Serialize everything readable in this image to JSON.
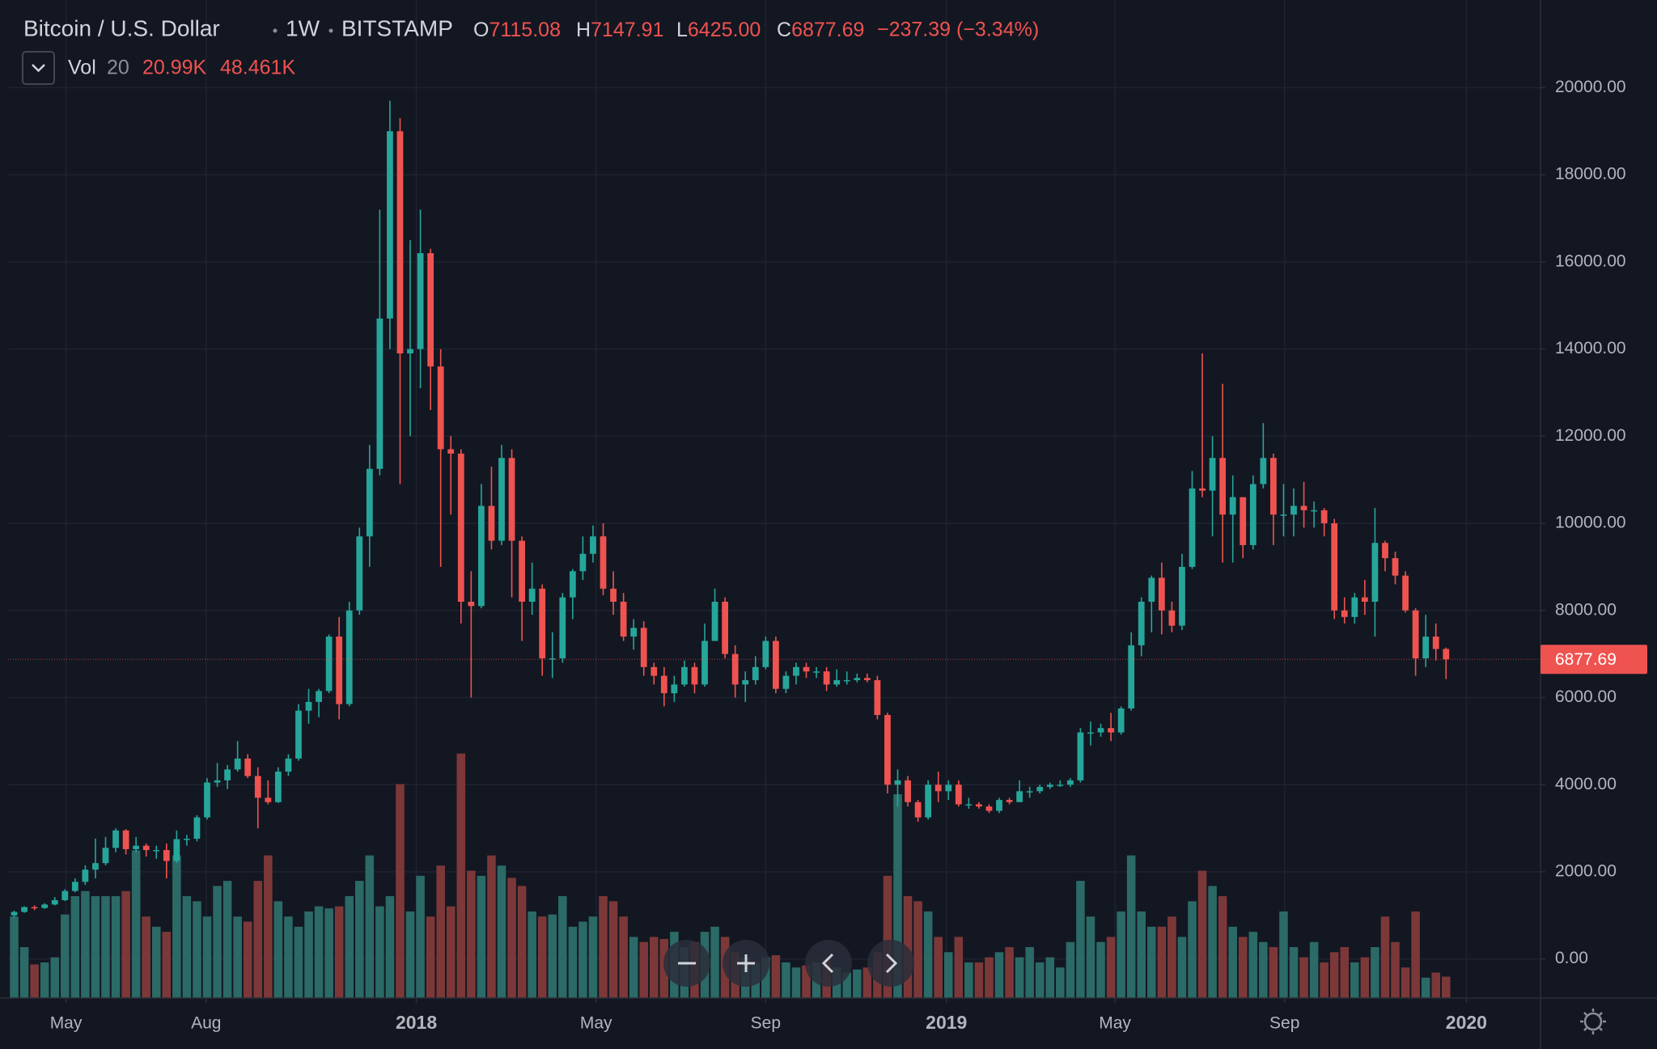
{
  "header": {
    "title": "Bitcoin / U.S. Dollar",
    "interval": "1W",
    "exchange": "BITSTAMP",
    "ohlc": [
      {
        "key": "O",
        "value": "7115.08"
      },
      {
        "key": "H",
        "value": "7147.91"
      },
      {
        "key": "L",
        "value": "6425.00"
      },
      {
        "key": "C",
        "value": "6877.69"
      }
    ],
    "change": "−237.39 (−3.34%)",
    "volume_label": "Vol",
    "volume_length": "20",
    "volume_value": "20.99K",
    "volume_ma": "48.461K"
  },
  "chart_data": {
    "type": "candlestick",
    "up_color": "#26a69a",
    "down_color": "#ef5350",
    "volume_up_color": "#2b6a66",
    "volume_down_color": "#7c3838",
    "xlim": [
      -0.6,
      150.3
    ],
    "xticks": [
      {
        "value": 5.1,
        "label": "May"
      },
      {
        "value": 18.9,
        "label": "Aug"
      },
      {
        "value": 39.6,
        "label": "2018"
      },
      {
        "value": 57.3,
        "label": "May"
      },
      {
        "value": 74.0,
        "label": "Sep"
      },
      {
        "value": 91.8,
        "label": "2019"
      },
      {
        "value": 108.4,
        "label": "May"
      },
      {
        "value": 125.1,
        "label": "Sep"
      },
      {
        "value": 143.0,
        "label": "2020"
      }
    ],
    "ylim": [
      -897,
      22012
    ],
    "yticks": [
      {
        "value": 0,
        "label": "0.00"
      },
      {
        "value": 2000,
        "label": "2000.00"
      },
      {
        "value": 4000,
        "label": "4000.00"
      },
      {
        "value": 6000,
        "label": "6000.00"
      },
      {
        "value": 8000,
        "label": "8000.00"
      },
      {
        "value": 10000,
        "label": "10000.00"
      },
      {
        "value": 12000,
        "label": "12000.00"
      },
      {
        "value": 14000,
        "label": "14000.00"
      },
      {
        "value": 16000,
        "label": "16000.00"
      },
      {
        "value": 18000,
        "label": "18000.00"
      },
      {
        "value": 20000,
        "label": "20000.00"
      }
    ],
    "grid": true,
    "open": [
      1000,
      1080,
      1190,
      1170,
      1250,
      1350,
      1560,
      1770,
      2050,
      2200,
      2550,
      2950,
      2520,
      2600,
      2500,
      2500,
      2250,
      2750,
      2760,
      3250,
      4050,
      4100,
      4350,
      4600,
      4200,
      3700,
      3600,
      4300,
      4600,
      5700,
      5900,
      6150,
      7400,
      5850,
      8000,
      9700,
      11250,
      14700,
      19000,
      13900,
      14000,
      16200,
      13600,
      11700,
      11600,
      8200,
      8100,
      10400,
      9600,
      11500,
      9600,
      8200,
      8500,
      6900,
      6900,
      8300,
      8900,
      9300,
      9700,
      8500,
      8200,
      7400,
      7600,
      6700,
      6500,
      6100,
      6300,
      6700,
      6300,
      7300,
      8200,
      7000,
      6300,
      6400,
      6700,
      7300,
      6200,
      6500,
      6700,
      6600,
      6600,
      6300,
      6400,
      6400,
      6450,
      6400,
      5600,
      4000,
      4100,
      3600,
      3250,
      4000,
      3850,
      4000,
      3550,
      3550,
      3500,
      3400,
      3650,
      3600,
      3850,
      3850,
      3950,
      4000,
      4000,
      4100,
      5200,
      5200,
      5300,
      5200,
      5750,
      7200,
      8200,
      8750,
      8000,
      7650,
      9000,
      10800,
      10750,
      11500,
      10200,
      10600,
      9500,
      10900,
      11500,
      10200,
      10200,
      10400,
      10300,
      10300,
      10000,
      8000,
      7850,
      8300,
      8200,
      9550,
      9200,
      8800,
      8000,
      6900,
      7400,
      7115.08
    ],
    "high": [
      1110,
      1210,
      1230,
      1280,
      1420,
      1600,
      1850,
      2150,
      2760,
      2800,
      3000,
      2980,
      2800,
      2650,
      2600,
      2650,
      2950,
      2850,
      3300,
      4150,
      4500,
      4450,
      5000,
      4700,
      4400,
      4100,
      4400,
      4700,
      5850,
      6200,
      6200,
      7450,
      7850,
      8200,
      9900,
      11800,
      17200,
      19700,
      19300,
      16500,
      17200,
      16300,
      14000,
      12000,
      11700,
      8900,
      10900,
      11300,
      11800,
      11700,
      9700,
      9100,
      8600,
      7500,
      8400,
      8950,
      9700,
      9950,
      10000,
      8900,
      8400,
      7800,
      7750,
      6800,
      6700,
      6500,
      6850,
      6800,
      7700,
      8500,
      8300,
      7200,
      6600,
      6950,
      7400,
      7400,
      6600,
      6800,
      6800,
      6700,
      6700,
      6650,
      6600,
      6550,
      6550,
      6500,
      5650,
      4350,
      4200,
      3650,
      4100,
      4300,
      4100,
      4100,
      3700,
      3600,
      3550,
      3700,
      3700,
      4100,
      3950,
      4000,
      4050,
      4100,
      4150,
      5300,
      5450,
      5400,
      5650,
      5800,
      7500,
      8300,
      8800,
      9100,
      8200,
      9300,
      11200,
      13900,
      12000,
      13200,
      11100,
      10600,
      11100,
      12300,
      11600,
      10900,
      10800,
      10950,
      10500,
      10350,
      10100,
      8300,
      8400,
      8700,
      10350,
      9600,
      9350,
      8900,
      8050,
      7900,
      7700,
      7147.91
    ],
    "low": [
      950,
      1060,
      1120,
      1150,
      1230,
      1330,
      1530,
      1700,
      1850,
      2150,
      2450,
      2400,
      2450,
      2350,
      2300,
      1850,
      2200,
      2600,
      2700,
      3200,
      3950,
      3900,
      4300,
      4150,
      3000,
      3550,
      3580,
      4200,
      4550,
      5400,
      5550,
      6100,
      5500,
      5800,
      7900,
      9000,
      11100,
      14000,
      10900,
      12000,
      13100,
      12600,
      9000,
      10200,
      7700,
      6000,
      8050,
      9400,
      9500,
      8300,
      7300,
      7900,
      6500,
      6450,
      6800,
      7800,
      8700,
      9100,
      8350,
      7900,
      7300,
      7100,
      6500,
      6300,
      5800,
      5900,
      6250,
      6100,
      6250,
      7300,
      6900,
      6000,
      5900,
      6300,
      6650,
      6100,
      6100,
      6300,
      6450,
      6450,
      6150,
      6250,
      6300,
      6350,
      6350,
      5500,
      3800,
      3500,
      3500,
      3150,
      3200,
      3600,
      3650,
      3500,
      3450,
      3450,
      3350,
      3350,
      3550,
      3600,
      3700,
      3800,
      3900,
      3950,
      3950,
      4050,
      4900,
      5100,
      5000,
      5150,
      5700,
      6950,
      7500,
      7450,
      7500,
      7550,
      8950,
      10600,
      9700,
      9100,
      9100,
      9200,
      9400,
      10800,
      9500,
      9700,
      9700,
      9900,
      9900,
      9700,
      7800,
      7700,
      7700,
      7900,
      7400,
      8900,
      8600,
      7950,
      6500,
      6700,
      6850,
      6425
    ],
    "close": [
      1080,
      1190,
      1170,
      1250,
      1350,
      1560,
      1770,
      2050,
      2200,
      2550,
      2950,
      2520,
      2600,
      2500,
      2500,
      2250,
      2750,
      2760,
      3250,
      4050,
      4100,
      4350,
      4600,
      4200,
      3700,
      3600,
      4300,
      4600,
      5700,
      5900,
      6150,
      7400,
      5850,
      8000,
      9700,
      11250,
      14700,
      19000,
      13900,
      14000,
      16200,
      13600,
      11700,
      11600,
      8200,
      8100,
      10400,
      9600,
      11500,
      9600,
      8200,
      8500,
      6900,
      6900,
      8300,
      8900,
      9300,
      9700,
      8500,
      8200,
      7400,
      7600,
      6700,
      6500,
      6100,
      6300,
      6700,
      6300,
      7300,
      8200,
      7000,
      6300,
      6400,
      6700,
      7300,
      6200,
      6500,
      6700,
      6600,
      6600,
      6300,
      6400,
      6400,
      6450,
      6400,
      5600,
      4000,
      4100,
      3600,
      3250,
      4000,
      3850,
      4000,
      3550,
      3550,
      3500,
      3400,
      3650,
      3600,
      3850,
      3850,
      3950,
      4000,
      4000,
      4100,
      5200,
      5200,
      5300,
      5200,
      5750,
      7200,
      8200,
      8750,
      8000,
      7650,
      9000,
      10800,
      10750,
      11500,
      10200,
      10600,
      9500,
      10900,
      11500,
      10200,
      10200,
      10400,
      10300,
      10300,
      10000,
      8000,
      7850,
      8300,
      8200,
      9550,
      9200,
      8800,
      8000,
      6900,
      7400,
      7115.08,
      6877.69
    ],
    "volume": [
      80,
      50,
      33,
      35,
      40,
      82,
      100,
      105,
      100,
      100,
      100,
      105,
      145,
      80,
      70,
      65,
      140,
      100,
      95,
      80,
      110,
      115,
      80,
      75,
      115,
      140,
      95,
      80,
      70,
      85,
      90,
      88,
      90,
      100,
      115,
      140,
      90,
      100,
      210,
      85,
      120,
      80,
      130,
      90,
      240,
      125,
      120,
      140,
      130,
      118,
      110,
      85,
      80,
      82,
      100,
      70,
      75,
      80,
      100,
      95,
      80,
      60,
      55,
      60,
      58,
      65,
      50,
      55,
      65,
      70,
      60,
      45,
      40,
      35,
      40,
      42,
      35,
      30,
      32,
      35,
      38,
      30,
      25,
      28,
      30,
      45,
      120,
      200,
      100,
      95,
      85,
      60,
      45,
      60,
      35,
      35,
      40,
      45,
      50,
      40,
      50,
      35,
      40,
      30,
      55,
      115,
      80,
      55,
      60,
      85,
      140,
      85,
      70,
      70,
      80,
      60,
      95,
      125,
      110,
      100,
      70,
      60,
      65,
      55,
      50,
      85,
      50,
      40,
      55,
      35,
      45,
      50,
      35,
      40,
      50,
      80,
      55,
      30,
      85,
      20,
      25,
      20.99
    ]
  }
}
